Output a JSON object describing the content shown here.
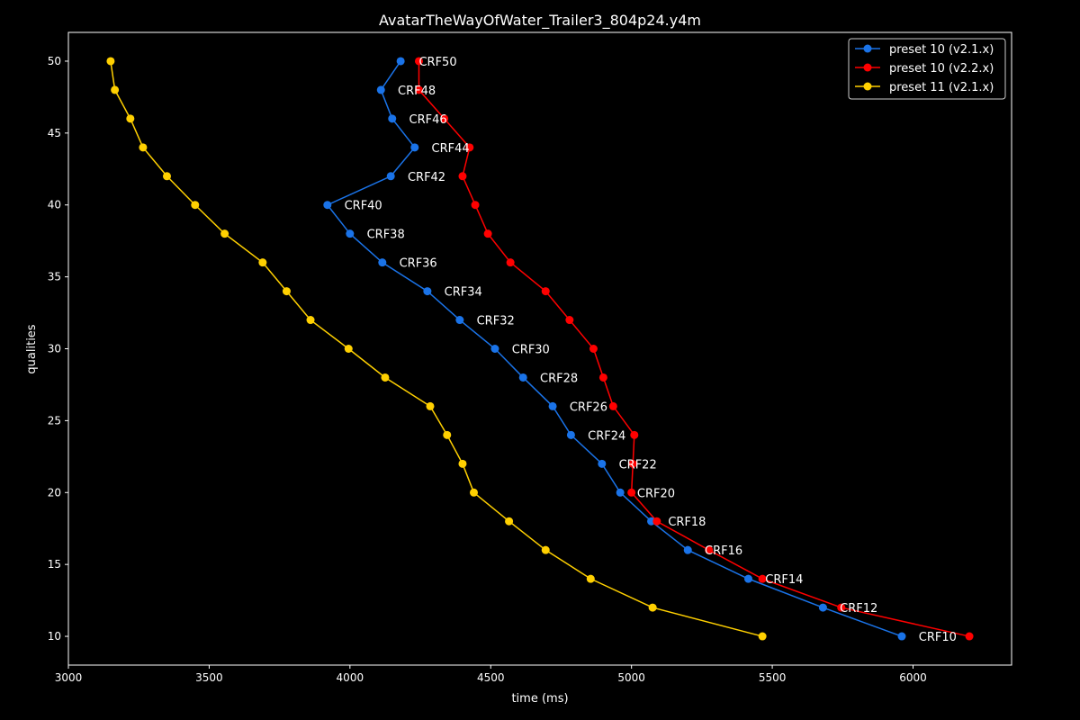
{
  "chart_data": {
    "type": "line",
    "title": "AvatarTheWayOfWater_Trailer3_804p24.y4m",
    "xlabel": "time (ms)",
    "ylabel": "qualities",
    "xlim": [
      3000,
      6350
    ],
    "ylim": [
      8,
      52
    ],
    "xticks": [
      3000,
      3500,
      4000,
      4500,
      5000,
      5500,
      6000
    ],
    "yticks": [
      10,
      15,
      20,
      25,
      30,
      35,
      40,
      45,
      50
    ],
    "grid": false,
    "legend_position": "top-right",
    "background": "#000000",
    "series": [
      {
        "name": "preset 10 (v2.1.x)",
        "color": "#1a73e8",
        "x": [
          4180,
          4110,
          4150,
          4230,
          4145,
          3920,
          4000,
          4115,
          4275,
          4390,
          4515,
          4615,
          4720,
          4785,
          4895,
          4960,
          5070,
          5200,
          5415,
          5680,
          5960
        ],
        "y": [
          50,
          48,
          46,
          44,
          42,
          40,
          38,
          36,
          34,
          32,
          30,
          28,
          26,
          24,
          22,
          20,
          18,
          16,
          14,
          12,
          10
        ]
      },
      {
        "name": "preset 10 (v2.2.x)",
        "color": "#ff0000",
        "x": [
          4245,
          4245,
          4335,
          4425,
          4400,
          4445,
          4490,
          4570,
          4695,
          4780,
          4865,
          4900,
          4935,
          5010,
          5005,
          5000,
          5090,
          5275,
          5465,
          5745,
          6200
        ],
        "y": [
          50,
          48,
          46,
          44,
          42,
          40,
          38,
          36,
          34,
          32,
          30,
          28,
          26,
          24,
          22,
          20,
          18,
          16,
          14,
          12,
          10
        ]
      },
      {
        "name": "preset 11 (v2.1.x)",
        "color": "#ffd000",
        "x": [
          3150,
          3165,
          3220,
          3265,
          3350,
          3450,
          3555,
          3690,
          3775,
          3860,
          3995,
          4125,
          4285,
          4345,
          4400,
          4440,
          4565,
          4695,
          4855,
          5075,
          5465
        ],
        "y": [
          50,
          48,
          46,
          44,
          42,
          40,
          38,
          36,
          34,
          32,
          30,
          28,
          26,
          24,
          22,
          20,
          18,
          16,
          14,
          12,
          10
        ]
      }
    ],
    "annotations": [
      {
        "text": "CRF50",
        "x": 4245,
        "y": 50
      },
      {
        "text": "CRF48",
        "x": 4170,
        "y": 48
      },
      {
        "text": "CRF46",
        "x": 4210,
        "y": 46
      },
      {
        "text": "CRF44",
        "x": 4290,
        "y": 44
      },
      {
        "text": "CRF42",
        "x": 4205,
        "y": 42
      },
      {
        "text": "CRF40",
        "x": 3980,
        "y": 40
      },
      {
        "text": "CRF38",
        "x": 4060,
        "y": 38
      },
      {
        "text": "CRF36",
        "x": 4175,
        "y": 36
      },
      {
        "text": "CRF34",
        "x": 4335,
        "y": 34
      },
      {
        "text": "CRF32",
        "x": 4450,
        "y": 32
      },
      {
        "text": "CRF30",
        "x": 4575,
        "y": 30
      },
      {
        "text": "CRF28",
        "x": 4675,
        "y": 28
      },
      {
        "text": "CRF26",
        "x": 4780,
        "y": 26
      },
      {
        "text": "CRF24",
        "x": 4845,
        "y": 24
      },
      {
        "text": "CRF22",
        "x": 4955,
        "y": 22
      },
      {
        "text": "CRF20",
        "x": 5020,
        "y": 20
      },
      {
        "text": "CRF18",
        "x": 5130,
        "y": 18
      },
      {
        "text": "CRF16",
        "x": 5260,
        "y": 16
      },
      {
        "text": "CRF14",
        "x": 5475,
        "y": 14
      },
      {
        "text": "CRF12",
        "x": 5740,
        "y": 12
      },
      {
        "text": "CRF10",
        "x": 6020,
        "y": 10
      }
    ]
  }
}
